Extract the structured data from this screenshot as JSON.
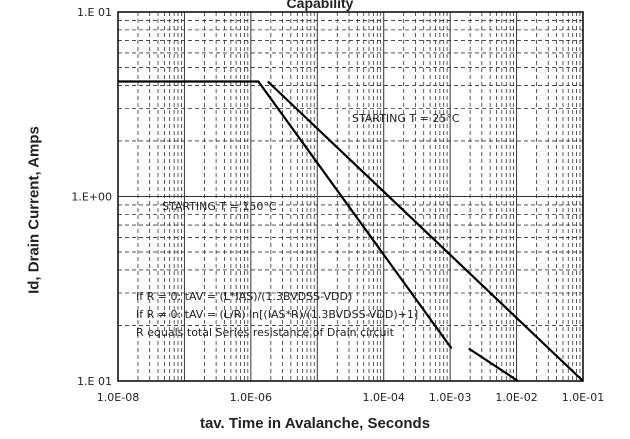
{
  "chart_data": {
    "type": "line",
    "title": "Capability",
    "xlabel": "tav. Time in Avalanche, Seconds",
    "ylabel": "Id, Drain Current, Amps",
    "xscale": "log",
    "yscale": "log",
    "xlim": [
      1e-08,
      0.1
    ],
    "ylim": [
      0.1,
      10
    ],
    "grid": true,
    "x_tick_labels": [
      "1.0E-08",
      "1.0E-06",
      "1.0E-04",
      "1.0E-03",
      "1.0E-02",
      "1.0E-01"
    ],
    "y_tick_labels": [
      "1.E 01",
      "1.E+00",
      "1.E 01"
    ],
    "series": [
      {
        "x": [
          1e-08,
          1.3e-06,
          0.00105
        ],
        "y": [
          4.2,
          4.2,
          0.15
        ]
      },
      {
        "x": [
          1.8e-06,
          0.1
        ],
        "y": [
          4.2,
          0.1
        ]
      },
      {
        "x": [
          0.0019,
          0.0105
        ],
        "y": [
          0.15,
          0.1
        ]
      }
    ],
    "annotations": [
      "STARTING T = 25°C",
      "STARTING T = 150°C",
      "If R = 0: tAV = (L*IAS)/(1.3BVDSS-VDD)",
      "If R ≠ 0: tAV = (L/R) ln[(IAS*R)/(1.3BVDSS-VDD)+1]",
      "R equals total Series resistance of Drain circuit"
    ]
  }
}
